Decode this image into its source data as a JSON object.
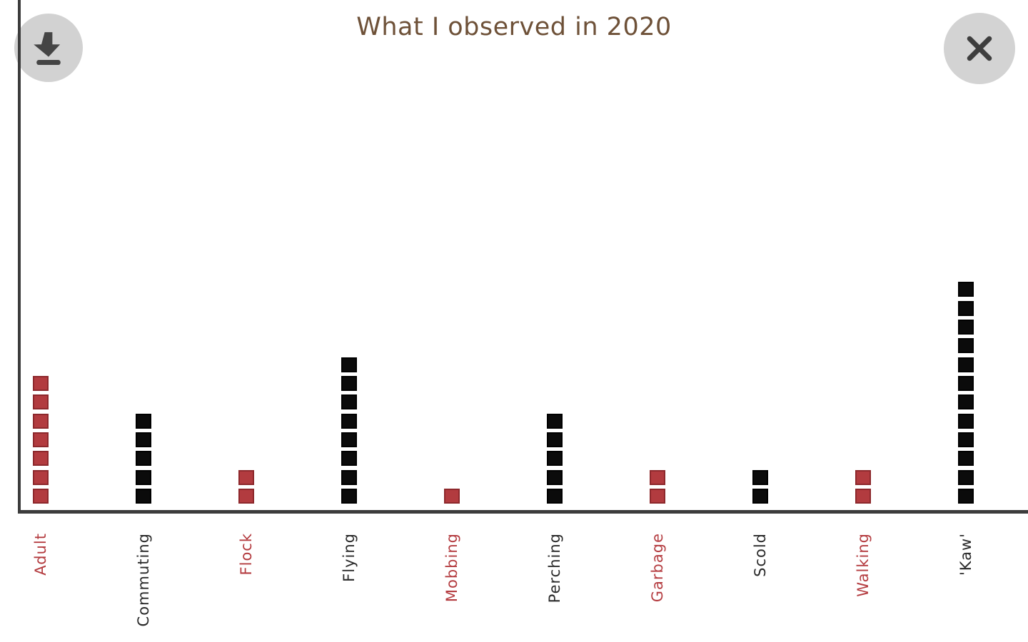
{
  "title": {
    "text": "What I observed in 2020",
    "color": "#6e5138"
  },
  "toolbar": {
    "download_icon": "download-icon",
    "close_icon": "close-icon"
  },
  "chart_data": {
    "type": "bar",
    "variant": "unit-square-stacked-columns",
    "title": "What I observed in 2020",
    "xlabel": "",
    "ylabel": "",
    "legend": false,
    "gridlines": false,
    "unit_per_square": 1,
    "ylim": [
      0,
      12
    ],
    "categories": [
      "Adult",
      "Commuting",
      "Flock",
      "Flying",
      "Mobbing",
      "Perching",
      "Garbage",
      "Scold",
      "Walking",
      "'Kaw'"
    ],
    "values": [
      7,
      5,
      2,
      8,
      1,
      5,
      2,
      2,
      2,
      12
    ],
    "series_colors": [
      "red",
      "black",
      "red",
      "black",
      "red",
      "black",
      "red",
      "black",
      "red",
      "black"
    ],
    "palette": {
      "red": {
        "fill": "#b23b3f",
        "border": "#8d282c",
        "label": "#b43c40"
      },
      "black": {
        "fill": "#0b0b0b",
        "border": "#000000",
        "label": "#2a2a2a"
      }
    },
    "axis_color": "#3c3c3c"
  }
}
